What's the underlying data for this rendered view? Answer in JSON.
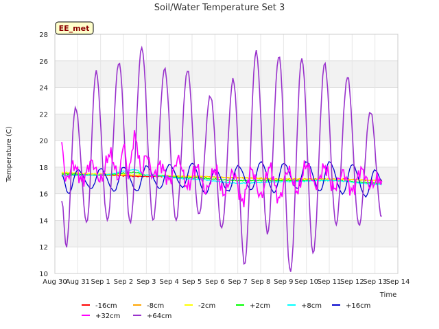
{
  "chart_data": {
    "type": "line",
    "title": "Soil/Water Temperature Set 3",
    "xlabel": "Time",
    "ylabel": "Temperature (C)",
    "badge": "EE_met",
    "ylim": [
      10,
      28
    ],
    "yticks": [
      10,
      12,
      14,
      16,
      18,
      20,
      22,
      24,
      26,
      28
    ],
    "xlim": [
      0,
      15
    ],
    "xticks": [
      "Aug 30",
      "Aug 31",
      "Sep 1",
      "Sep 2",
      "Sep 3",
      "Sep 4",
      "Sep 5",
      "Sep 6",
      "Sep 7",
      "Sep 8",
      "Sep 9",
      "Sep 10",
      "Sep 11",
      "Sep 12",
      "Sep 13",
      "Sep 14"
    ],
    "grid": true,
    "legend_position": "bottom",
    "series": [
      {
        "name": "-16cm",
        "color": "#ff0000",
        "style": "flat",
        "base": 17.3,
        "amp": 0.0,
        "x": [
          0.3,
          14.3
        ],
        "x_pts": [
          0.3,
          2,
          4,
          6,
          8,
          10,
          12,
          14.3
        ],
        "y_pts": [
          17.4,
          17.4,
          17.3,
          17.3,
          17.2,
          17.1,
          17.1,
          17.0
        ]
      },
      {
        "name": "-8cm",
        "color": "#ffa500",
        "x_pts": [
          0.3,
          2,
          4,
          6,
          8,
          10,
          12,
          14.3
        ],
        "y_pts": [
          17.5,
          17.4,
          17.4,
          17.3,
          17.2,
          17.1,
          17.1,
          17.0
        ]
      },
      {
        "name": "-2cm",
        "color": "#ffff00",
        "x_pts": [
          0.3,
          2,
          4,
          6,
          8,
          10,
          12,
          14.3
        ],
        "y_pts": [
          17.6,
          17.5,
          17.4,
          17.3,
          17.2,
          17.1,
          17.1,
          17.0
        ]
      },
      {
        "name": "+2cm",
        "color": "#00ff00",
        "x_pts": [
          0.3,
          2,
          3.5,
          4,
          6,
          8,
          10,
          12,
          14.3
        ],
        "y_pts": [
          17.5,
          17.4,
          17.6,
          17.4,
          17.2,
          17.0,
          17.0,
          17.0,
          16.8
        ]
      },
      {
        "name": "+8cm",
        "color": "#00ffff",
        "x_pts": [
          0.3,
          2,
          3.5,
          4,
          6,
          8,
          10,
          12,
          14.3
        ],
        "y_pts": [
          17.4,
          17.4,
          17.8,
          17.4,
          17.1,
          16.8,
          16.9,
          17.0,
          16.7
        ]
      },
      {
        "name": "+16cm",
        "color": "#0000cd",
        "x_pts": [
          0.3,
          0.6,
          1,
          1.6,
          2,
          2.6,
          3,
          3.6,
          4,
          4.6,
          5,
          5.6,
          6,
          6.6,
          7,
          7.6,
          8,
          8.6,
          9,
          9.6,
          10,
          10.6,
          11,
          11.6,
          12,
          12.6,
          13,
          13.6,
          14,
          14.3
        ],
        "y_pts": [
          17.4,
          16.0,
          17.8,
          16.4,
          17.9,
          16.2,
          18.0,
          16.2,
          18.1,
          16.4,
          18.2,
          16.5,
          18.3,
          16.0,
          17.8,
          16.2,
          18.1,
          16.3,
          18.4,
          16.1,
          18.3,
          16.4,
          18.4,
          16.2,
          18.4,
          16.0,
          18.2,
          15.8,
          17.8,
          17.0
        ]
      },
      {
        "name": "+32cm",
        "color": "#ff00ff",
        "x_pts": [
          0.3,
          0.5,
          0.8,
          1.2,
          1.6,
          2.0,
          2.4,
          2.8,
          3.0,
          3.2,
          3.5,
          3.8,
          4.0,
          4.3,
          4.6,
          5.0,
          5.4,
          5.8,
          6.2,
          6.6,
          7.0,
          7.4,
          7.8,
          8.2,
          8.6,
          9.0,
          9.4,
          9.8,
          10.2,
          10.6,
          11.0,
          11.4,
          11.8,
          12.2,
          12.6,
          13.0,
          13.4,
          13.8,
          14.2,
          14.3
        ],
        "y_pts": [
          19.5,
          17.0,
          18.2,
          17.0,
          18.4,
          17.0,
          19.0,
          17.2,
          19.8,
          17.5,
          20.3,
          17.6,
          19.0,
          17.3,
          18.2,
          17.0,
          18.6,
          16.5,
          18.0,
          16.2,
          17.8,
          16.0,
          17.6,
          15.4,
          17.8,
          15.8,
          18.0,
          15.6,
          17.8,
          16.2,
          18.2,
          16.6,
          18.0,
          16.4,
          17.6,
          16.2,
          17.8,
          16.6,
          17.2,
          16.4
        ]
      },
      {
        "name": "+64cm",
        "color": "#9932cc",
        "x_pts": [
          0.3,
          0.5,
          0.9,
          1.4,
          1.8,
          2.3,
          2.8,
          3.3,
          3.8,
          4.3,
          4.8,
          5.3,
          5.8,
          6.3,
          6.8,
          7.3,
          7.8,
          8.3,
          8.8,
          9.3,
          9.8,
          10.3,
          10.8,
          11.3,
          11.8,
          12.3,
          12.8,
          13.3,
          13.8,
          14.3
        ],
        "y_pts": [
          15.5,
          12.0,
          22.5,
          13.8,
          25.2,
          14.0,
          25.9,
          13.8,
          27.0,
          14.0,
          25.4,
          14.0,
          25.3,
          14.4,
          23.4,
          13.4,
          24.6,
          10.7,
          26.7,
          13.0,
          26.4,
          10.1,
          26.2,
          11.5,
          25.8,
          13.7,
          24.8,
          13.6,
          22.2,
          14.2
        ]
      }
    ]
  }
}
